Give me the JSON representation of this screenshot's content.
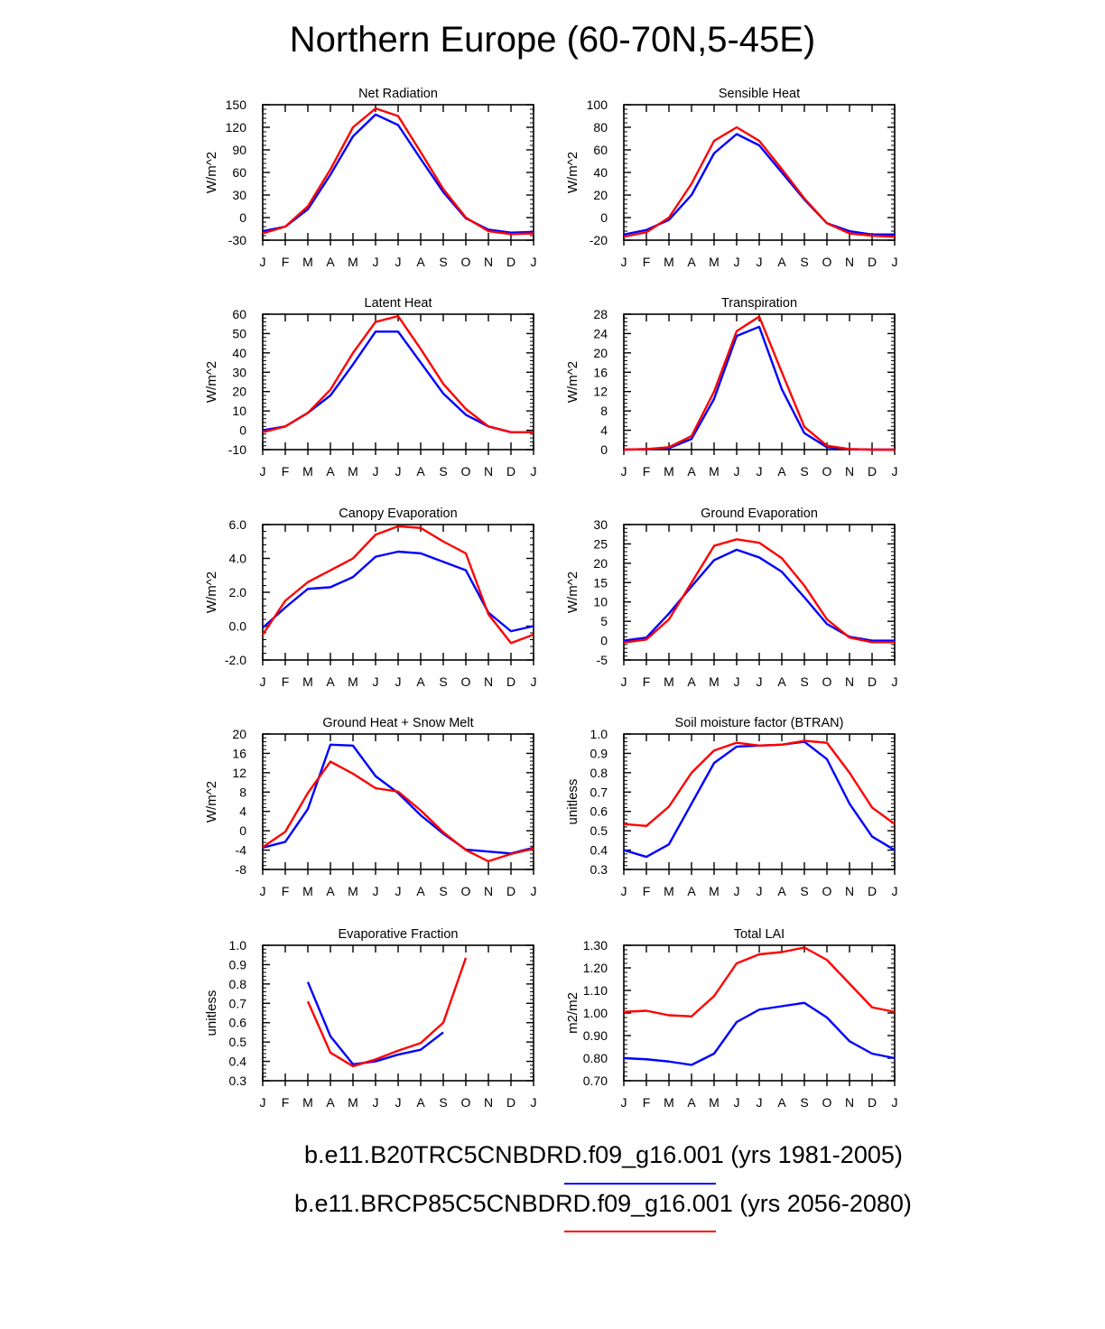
{
  "page": {
    "title": "Northern Europe (60-70N,5-45E)"
  },
  "legend": [
    {
      "label": "b.e11.B20TRC5CNBDRD.f09_g16.001 (yrs 1981-2005)",
      "color": "#0000ff"
    },
    {
      "label": "b.e11.BRCP85C5CNBDRD.f09_g16.001 (yrs 2056-2080)",
      "color": "#ff0000"
    }
  ],
  "chart_data": [
    {
      "type": "line",
      "title": "Net Radiation",
      "ylabel": "W/m^2",
      "categories": [
        "J",
        "F",
        "M",
        "A",
        "M",
        "J",
        "J",
        "A",
        "S",
        "O",
        "N",
        "D",
        "J"
      ],
      "ylim": [
        -30,
        150
      ],
      "yticks": [
        -30,
        0,
        30,
        60,
        90,
        120,
        150
      ],
      "tick_labels": [
        "-30",
        "0",
        "30",
        "60",
        "90",
        "120",
        "150"
      ],
      "series": [
        {
          "name": "b.e11.B20TRC5CNBDRD.f09_g16.001 (yrs 1981-2005)",
          "color": "#0000ff",
          "values": [
            -18,
            -12,
            11,
            57,
            108,
            137,
            123,
            78,
            34,
            -1,
            -16,
            -20,
            -19
          ]
        },
        {
          "name": "b.e11.BRCP85C5CNBDRD.f09_g16.001 (yrs 2056-2080)",
          "color": "#ff0000",
          "values": [
            -21,
            -12,
            15,
            64,
            120,
            145,
            135,
            87,
            38,
            0,
            -18,
            -22,
            -21
          ]
        }
      ]
    },
    {
      "type": "line",
      "title": "Sensible Heat",
      "ylabel": "W/m^2",
      "categories": [
        "J",
        "F",
        "M",
        "A",
        "M",
        "J",
        "J",
        "A",
        "S",
        "O",
        "N",
        "D",
        "J"
      ],
      "ylim": [
        -20,
        100
      ],
      "yticks": [
        -20,
        0,
        20,
        40,
        60,
        80,
        100
      ],
      "tick_labels": [
        "-20",
        "0",
        "20",
        "40",
        "60",
        "80",
        "100"
      ],
      "series": [
        {
          "name": "b.e11.B20TRC5CNBDRD.f09_g16.001 (yrs 1981-2005)",
          "color": "#0000ff",
          "values": [
            -15,
            -11,
            -2,
            20,
            57,
            74,
            64,
            40,
            16,
            -5,
            -12,
            -15,
            -15
          ]
        },
        {
          "name": "b.e11.BRCP85C5CNBDRD.f09_g16.001 (yrs 2056-2080)",
          "color": "#ff0000",
          "values": [
            -17,
            -13,
            0,
            30,
            68,
            80,
            68,
            43,
            17,
            -5,
            -14,
            -16,
            -17
          ]
        }
      ]
    },
    {
      "type": "line",
      "title": "Latent Heat",
      "ylabel": "W/m^2",
      "categories": [
        "J",
        "F",
        "M",
        "A",
        "M",
        "J",
        "J",
        "A",
        "S",
        "O",
        "N",
        "D",
        "J"
      ],
      "ylim": [
        -10,
        60
      ],
      "yticks": [
        -10,
        0,
        10,
        20,
        30,
        40,
        50,
        60
      ],
      "tick_labels": [
        "-10",
        "0",
        "10",
        "20",
        "30",
        "40",
        "50",
        "60"
      ],
      "series": [
        {
          "name": "b.e11.B20TRC5CNBDRD.f09_g16.001 (yrs 1981-2005)",
          "color": "#0000ff",
          "values": [
            0,
            2,
            9,
            18,
            34,
            51,
            51,
            35,
            19,
            8,
            2,
            -1,
            -1
          ]
        },
        {
          "name": "b.e11.BRCP85C5CNBDRD.f09_g16.001 (yrs 2056-2080)",
          "color": "#ff0000",
          "values": [
            -1,
            2,
            9,
            21,
            40,
            56,
            59,
            42,
            24,
            11,
            2,
            -1,
            -1
          ]
        }
      ]
    },
    {
      "type": "line",
      "title": "Transpiration",
      "ylabel": "W/m^2",
      "categories": [
        "J",
        "F",
        "M",
        "A",
        "M",
        "J",
        "J",
        "A",
        "S",
        "O",
        "N",
        "D",
        "J"
      ],
      "ylim": [
        0,
        28
      ],
      "yticks": [
        0,
        4,
        8,
        12,
        16,
        20,
        24,
        28
      ],
      "tick_labels": [
        "0",
        "4",
        "8",
        "12",
        "16",
        "20",
        "24",
        "28"
      ],
      "series": [
        {
          "name": "b.e11.B20TRC5CNBDRD.f09_g16.001 (yrs 1981-2005)",
          "color": "#0000ff",
          "values": [
            0,
            0.1,
            0.3,
            2.2,
            10.5,
            23.5,
            25.4,
            12.5,
            3.4,
            0.5,
            0.1,
            0,
            0
          ]
        },
        {
          "name": "b.e11.BRCP85C5CNBDRD.f09_g16.001 (yrs 2056-2080)",
          "color": "#ff0000",
          "values": [
            0,
            0.1,
            0.5,
            2.8,
            12,
            24.5,
            27.5,
            16,
            4.7,
            0.8,
            0.1,
            0,
            0
          ]
        }
      ]
    },
    {
      "type": "line",
      "title": "Canopy Evaporation",
      "ylabel": "W/m^2",
      "categories": [
        "J",
        "F",
        "M",
        "A",
        "M",
        "J",
        "J",
        "A",
        "S",
        "O",
        "N",
        "D",
        "J"
      ],
      "ylim": [
        -2,
        6
      ],
      "yticks": [
        -2,
        0,
        2,
        4,
        6
      ],
      "tick_labels": [
        "-2.0",
        "0.0",
        "2.0",
        "4.0",
        "6.0"
      ],
      "series": [
        {
          "name": "b.e11.B20TRC5CNBDRD.f09_g16.001 (yrs 1981-2005)",
          "color": "#0000ff",
          "values": [
            -0.1,
            1.1,
            2.2,
            2.3,
            2.9,
            4.1,
            4.4,
            4.3,
            3.8,
            3.3,
            0.8,
            -0.3,
            0
          ]
        },
        {
          "name": "b.e11.BRCP85C5CNBDRD.f09_g16.001 (yrs 2056-2080)",
          "color": "#ff0000",
          "values": [
            -0.5,
            1.5,
            2.6,
            3.3,
            4.0,
            5.4,
            5.9,
            5.8,
            5.0,
            4.3,
            0.7,
            -1.0,
            -0.5
          ]
        }
      ]
    },
    {
      "type": "line",
      "title": "Ground Evaporation",
      "ylabel": "W/m^2",
      "categories": [
        "J",
        "F",
        "M",
        "A",
        "M",
        "J",
        "J",
        "A",
        "S",
        "O",
        "N",
        "D",
        "J"
      ],
      "ylim": [
        -5,
        30
      ],
      "yticks": [
        -5,
        0,
        5,
        10,
        15,
        20,
        25,
        30
      ],
      "tick_labels": [
        "-5",
        "0",
        "5",
        "10",
        "15",
        "20",
        "25",
        "30"
      ],
      "series": [
        {
          "name": "b.e11.B20TRC5CNBDRD.f09_g16.001 (yrs 1981-2005)",
          "color": "#0000ff",
          "values": [
            0,
            0.8,
            7,
            14,
            20.8,
            23.5,
            21.5,
            17.8,
            11.2,
            4.3,
            1.0,
            0,
            0
          ]
        },
        {
          "name": "b.e11.BRCP85C5CNBDRD.f09_g16.001 (yrs 2056-2080)",
          "color": "#ff0000",
          "values": [
            -0.5,
            0.3,
            5.5,
            15,
            24.5,
            26.2,
            25.3,
            21.3,
            14.2,
            5.5,
            0.8,
            -0.4,
            -0.4
          ]
        }
      ]
    },
    {
      "type": "line",
      "title": "Ground Heat + Snow Melt",
      "ylabel": "W/m^2",
      "categories": [
        "J",
        "F",
        "M",
        "A",
        "M",
        "J",
        "J",
        "A",
        "S",
        "O",
        "N",
        "D",
        "J"
      ],
      "ylim": [
        -8,
        20
      ],
      "yticks": [
        -8,
        -4,
        0,
        4,
        8,
        12,
        16,
        20
      ],
      "tick_labels": [
        "-8",
        "-4",
        "0",
        "4",
        "8",
        "12",
        "16",
        "20"
      ],
      "series": [
        {
          "name": "b.e11.B20TRC5CNBDRD.f09_g16.001 (yrs 1981-2005)",
          "color": "#0000ff",
          "values": [
            -3.5,
            -2.3,
            4.5,
            17.8,
            17.6,
            11.3,
            7.8,
            3.2,
            -0.6,
            -3.9,
            -4.3,
            -4.7,
            -3.5
          ]
        },
        {
          "name": "b.e11.BRCP85C5CNBDRD.f09_g16.001 (yrs 2056-2080)",
          "color": "#ff0000",
          "values": [
            -3.4,
            -0.2,
            7.8,
            14.3,
            11.8,
            8.8,
            8.1,
            4.2,
            -0.3,
            -4.0,
            -6.3,
            -4.8,
            -3.7
          ]
        }
      ]
    },
    {
      "type": "line",
      "title": "Soil moisture factor (BTRAN)",
      "ylabel": "unitless",
      "categories": [
        "J",
        "F",
        "M",
        "A",
        "M",
        "J",
        "J",
        "A",
        "S",
        "O",
        "N",
        "D",
        "J"
      ],
      "ylim": [
        0.3,
        1.0
      ],
      "yticks": [
        0.3,
        0.4,
        0.5,
        0.6,
        0.7,
        0.8,
        0.9,
        1.0
      ],
      "tick_labels": [
        "0.3",
        "0.4",
        "0.5",
        "0.6",
        "0.7",
        "0.8",
        "0.9",
        "1.0"
      ],
      "series": [
        {
          "name": "b.e11.B20TRC5CNBDRD.f09_g16.001 (yrs 1981-2005)",
          "color": "#0000ff",
          "values": [
            0.4,
            0.365,
            0.43,
            0.64,
            0.85,
            0.935,
            0.94,
            0.945,
            0.96,
            0.87,
            0.64,
            0.47,
            0.4
          ]
        },
        {
          "name": "b.e11.BRCP85C5CNBDRD.f09_g16.001 (yrs 2056-2080)",
          "color": "#ff0000",
          "values": [
            0.535,
            0.525,
            0.625,
            0.8,
            0.915,
            0.955,
            0.94,
            0.945,
            0.965,
            0.955,
            0.8,
            0.62,
            0.535
          ]
        }
      ]
    },
    {
      "type": "line",
      "title": "Evaporative Fraction",
      "ylabel": "unitless",
      "categories": [
        "J",
        "F",
        "M",
        "A",
        "M",
        "J",
        "J",
        "A",
        "S",
        "O",
        "N",
        "D",
        "J"
      ],
      "ylim": [
        0.3,
        1.0
      ],
      "yticks": [
        0.3,
        0.4,
        0.5,
        0.6,
        0.7,
        0.8,
        0.9,
        1.0
      ],
      "tick_labels": [
        "0.3",
        "0.4",
        "0.5",
        "0.6",
        "0.7",
        "0.8",
        "0.9",
        "1.0"
      ],
      "series": [
        {
          "name": "b.e11.B20TRC5CNBDRD.f09_g16.001 (yrs 1981-2005)",
          "color": "#0000ff",
          "values": [
            null,
            null,
            0.81,
            0.53,
            0.385,
            0.4,
            0.435,
            0.46,
            0.55,
            null,
            null,
            null,
            null
          ]
        },
        {
          "name": "b.e11.BRCP85C5CNBDRD.f09_g16.001 (yrs 2056-2080)",
          "color": "#ff0000",
          "values": [
            null,
            null,
            0.71,
            0.445,
            0.375,
            0.41,
            0.455,
            0.495,
            0.6,
            0.935,
            null,
            null,
            null
          ]
        }
      ]
    },
    {
      "type": "line",
      "title": "Total LAI",
      "ylabel": "m2/m2",
      "categories": [
        "J",
        "F",
        "M",
        "A",
        "M",
        "J",
        "J",
        "A",
        "S",
        "O",
        "N",
        "D",
        "J"
      ],
      "ylim": [
        0.7,
        1.3
      ],
      "yticks": [
        0.7,
        0.8,
        0.9,
        1.0,
        1.1,
        1.2,
        1.3
      ],
      "tick_labels": [
        "0.70",
        "0.80",
        "0.90",
        "1.00",
        "1.10",
        "1.20",
        "1.30"
      ],
      "series": [
        {
          "name": "b.e11.B20TRC5CNBDRD.f09_g16.001 (yrs 1981-2005)",
          "color": "#0000ff",
          "values": [
            0.8,
            0.795,
            0.785,
            0.77,
            0.82,
            0.96,
            1.015,
            1.03,
            1.045,
            0.98,
            0.875,
            0.82,
            0.8
          ]
        },
        {
          "name": "b.e11.BRCP85C5CNBDRD.f09_g16.001 (yrs 2056-2080)",
          "color": "#ff0000",
          "values": [
            1.005,
            1.01,
            0.99,
            0.985,
            1.075,
            1.22,
            1.26,
            1.27,
            1.29,
            1.235,
            1.13,
            1.025,
            1.005
          ]
        }
      ]
    }
  ]
}
